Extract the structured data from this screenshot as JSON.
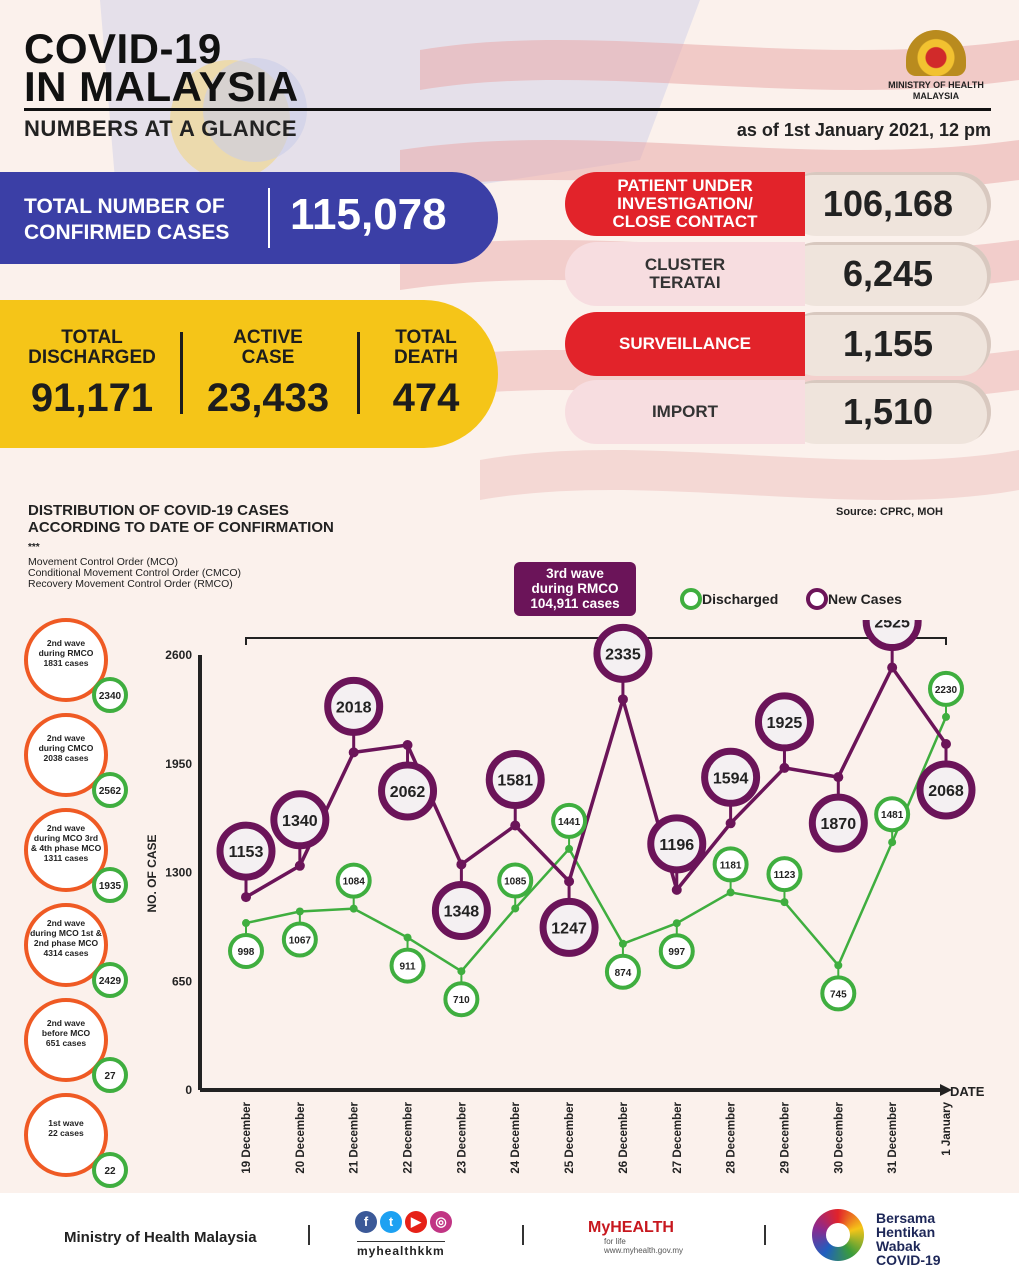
{
  "header": {
    "title_line1": "COVID-19",
    "title_line2": "IN MALAYSIA",
    "subtitle": "NUMBERS AT A GLANCE",
    "as_of": "as of 1st January 2021, 12 pm",
    "ministry_line1": "MINISTRY OF HEALTH",
    "ministry_line2": "MALAYSIA"
  },
  "totals": {
    "confirmed_label_1": "TOTAL NUMBER OF",
    "confirmed_label_2": "CONFIRMED CASES",
    "confirmed_value": "115,078",
    "discharged_label_1": "TOTAL",
    "discharged_label_2": "DISCHARGED",
    "discharged_value": "91,171",
    "active_label_1": "ACTIVE",
    "active_label_2": "CASE",
    "active_value": "23,433",
    "death_label_1": "TOTAL",
    "death_label_2": "DEATH",
    "death_value": "474"
  },
  "categories": [
    {
      "label_1": "PATIENT UNDER",
      "label_2": "INVESTIGATION/",
      "label_3": "CLOSE CONTACT",
      "value": "106,168"
    },
    {
      "label_1": "CLUSTER",
      "label_2": "TERATAI",
      "label_3": "",
      "value": "6,245"
    },
    {
      "label_1": "SURVEILLANCE",
      "label_2": "",
      "label_3": "",
      "value": "1,155"
    },
    {
      "label_1": "IMPORT",
      "label_2": "",
      "label_3": "",
      "value": "1,510"
    }
  ],
  "distribution": {
    "title_1": "DISTRIBUTION OF COVID-19 CASES",
    "title_2": "ACCORDING TO DATE OF CONFIRMATION",
    "source": "Source: CPRC, MOH",
    "stars": "***",
    "note_1": "Movement Control Order (MCO)",
    "note_2": "Conditional Movement Control Order (CMCO)",
    "note_3": "Recovery Movement Control Order (RMCO)",
    "wave_1": "3rd wave",
    "wave_2": "during RMCO",
    "wave_3": "104,911 cases",
    "legend_discharged": "Discharged",
    "legend_new": "New Cases"
  },
  "waves": [
    {
      "line_1": "2nd wave",
      "line_2": "during RMCO",
      "line_3": "1831 cases",
      "line_4": "",
      "discharged": "2340"
    },
    {
      "line_1": "2nd wave",
      "line_2": "during CMCO",
      "line_3": "2038 cases",
      "line_4": "",
      "discharged": "2562"
    },
    {
      "line_1": "2nd wave",
      "line_2": "during MCO 3rd",
      "line_3": "& 4th phase MCO",
      "line_4": "1311 cases",
      "discharged": "1935"
    },
    {
      "line_1": "2nd wave",
      "line_2": "during MCO 1st &",
      "line_3": "2nd phase MCO",
      "line_4": "4314 cases",
      "discharged": "2429"
    },
    {
      "line_1": "2nd wave",
      "line_2": "before MCO",
      "line_3": "651 cases",
      "line_4": "",
      "discharged": "27"
    },
    {
      "line_1": "1st wave",
      "line_2": "22 cases",
      "line_3": "",
      "line_4": "",
      "discharged": "22"
    }
  ],
  "chart_data": {
    "type": "line",
    "ylabel": "NO. OF CASE",
    "xlabel": "DATE",
    "ylim": [
      0,
      2600
    ],
    "yticks": [
      0,
      650,
      1300,
      1950,
      2600
    ],
    "categories": [
      "19 December",
      "20 December",
      "21 December",
      "22 December",
      "23 December",
      "24 December",
      "25 December",
      "26 December",
      "27 December",
      "28 December",
      "29 December",
      "30 December",
      "31 December",
      "1 January"
    ],
    "series": [
      {
        "name": "New Cases",
        "color": "#6b1459",
        "values": [
          1153,
          1340,
          2018,
          2062,
          1348,
          1581,
          1247,
          2335,
          1196,
          1594,
          1925,
          1870,
          2525,
          2068
        ]
      },
      {
        "name": "Discharged",
        "color": "#3fae3f",
        "values": [
          998,
          1067,
          1084,
          911,
          710,
          1085,
          1441,
          874,
          997,
          1181,
          1123,
          745,
          1481,
          2230
        ]
      }
    ]
  },
  "footer": {
    "ministry": "Ministry of Health Malaysia",
    "handle": "myhealthkkm",
    "myhealth": "MyHEALTH",
    "myhealth_tag": "for life",
    "myhealth_url": "www.myhealth.gov.my",
    "bersama_1": "Bersama",
    "bersama_2": "Hentikan",
    "bersama_3": "Wabak",
    "bersama_4": "COVID-19"
  },
  "colors": {
    "blue": "#3b3fa6",
    "yellow": "#f5c518",
    "red": "#e2232a",
    "purple": "#6b1459",
    "green": "#3fae3f",
    "orange": "#ef5a24"
  }
}
